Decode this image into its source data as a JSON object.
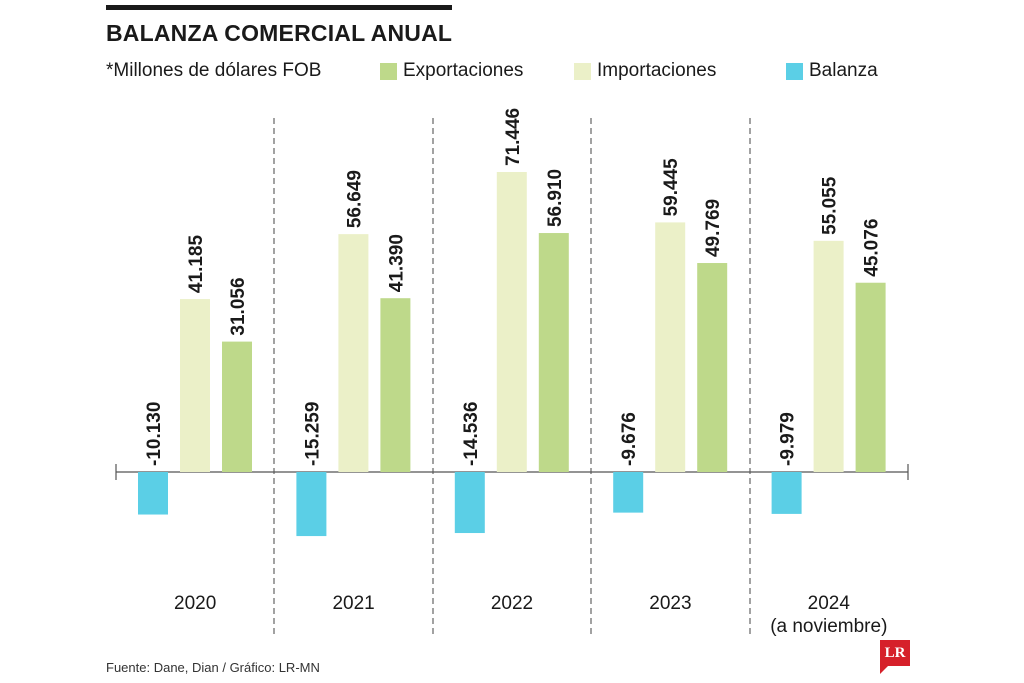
{
  "header": {
    "title": "BALANZA COMERCIAL ANUAL",
    "subtitle": "*Millones de dólares FOB"
  },
  "colors": {
    "exportaciones": "#bed98a",
    "importaciones": "#ebf0c8",
    "balanza": "#5bcfe6"
  },
  "chart_data": {
    "type": "bar",
    "categories": [
      "2020",
      "2021",
      "2022",
      "2023",
      "2024"
    ],
    "category_sublabels": [
      "",
      "",
      "",
      "",
      "(a noviembre)"
    ],
    "series": [
      {
        "name": "Balanza",
        "key": "balanza",
        "values": [
          -10130,
          -15259,
          -14536,
          -9676,
          -9979
        ],
        "labels": [
          "-10.130",
          "-15.259",
          "-14.536",
          "-9.676",
          "-9.979"
        ]
      },
      {
        "name": "Importaciones",
        "key": "importaciones",
        "values": [
          41185,
          56649,
          71446,
          59445,
          55055
        ],
        "labels": [
          "41.185",
          "56.649",
          "71.446",
          "59.445",
          "55.055"
        ]
      },
      {
        "name": "Exportaciones",
        "key": "exportaciones",
        "values": [
          31056,
          41390,
          56910,
          49769,
          45076
        ],
        "labels": [
          "31.056",
          "41.390",
          "56.910",
          "49.769",
          "45.076"
        ]
      }
    ],
    "legend_order": [
      "Exportaciones",
      "Importaciones",
      "Balanza"
    ],
    "xlabel": "",
    "ylabel": "",
    "grid": false,
    "legend_position": "top"
  },
  "footer": {
    "source": "Fuente: Dane, Dian / Gráfico: LR-MN",
    "logo_text": "LR"
  }
}
